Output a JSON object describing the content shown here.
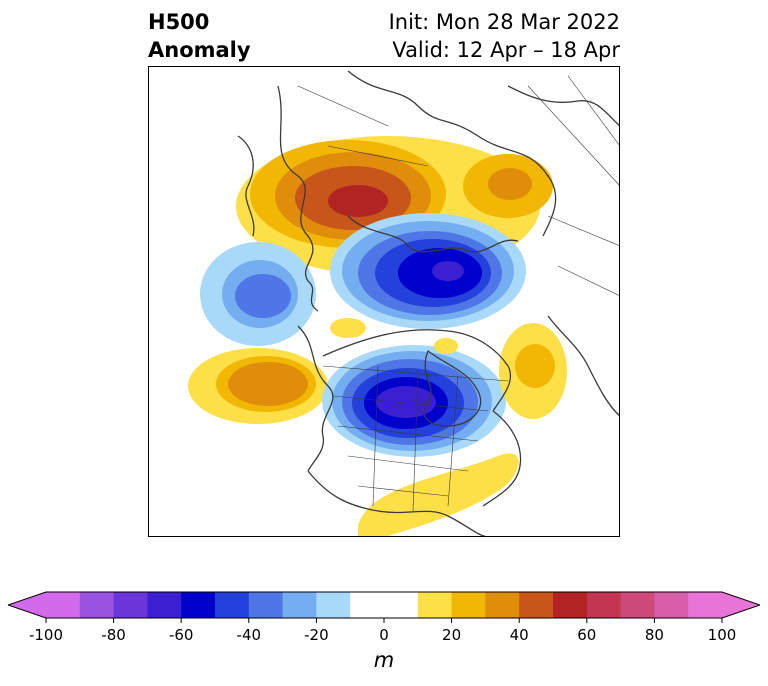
{
  "title": {
    "variable": "H500",
    "kind": "Anomaly",
    "init": "Init: Mon 28 Mar 2022",
    "valid": "Valid: 12 Apr – 18 Apr"
  },
  "colorbar": {
    "unit": "m",
    "tick_labels": [
      "-100",
      "-80",
      "-60",
      "-40",
      "-20",
      "0",
      "20",
      "40",
      "60",
      "80",
      "100"
    ],
    "colors": [
      "#d36ae9",
      "#9a52e0",
      "#6b36d8",
      "#3b1fd1",
      "#0000cd",
      "#2441db",
      "#4e76e6",
      "#75aef0",
      "#a9d9f8",
      "#ffffff",
      "#ffffff",
      "#fde047",
      "#f2b704",
      "#df8d0b",
      "#c8561a",
      "#b02423",
      "#c13651",
      "#cd4a7a",
      "#d95ea8",
      "#e874d8"
    ],
    "extend": "both"
  },
  "map": {
    "projection": "north-polar-stereographic",
    "field": "500 hPa geopotential height anomaly",
    "anomaly_centers": [
      {
        "region": "Northeast Asia / Siberia",
        "sign": "positive",
        "peak_m": 60
      },
      {
        "region": "Arctic north of Siberia",
        "sign": "negative",
        "peak_m": -60
      },
      {
        "region": "Central North Pacific",
        "sign": "negative",
        "peak_m": -40
      },
      {
        "region": "Northeast Pacific",
        "sign": "positive",
        "peak_m": 40
      },
      {
        "region": "Canada / Hudson Bay",
        "sign": "negative",
        "peak_m": -60
      },
      {
        "region": "Scandinavia",
        "sign": "positive",
        "peak_m": 30
      },
      {
        "region": "Western Atlantic / Eastern US",
        "sign": "positive",
        "peak_m": 20
      }
    ]
  }
}
